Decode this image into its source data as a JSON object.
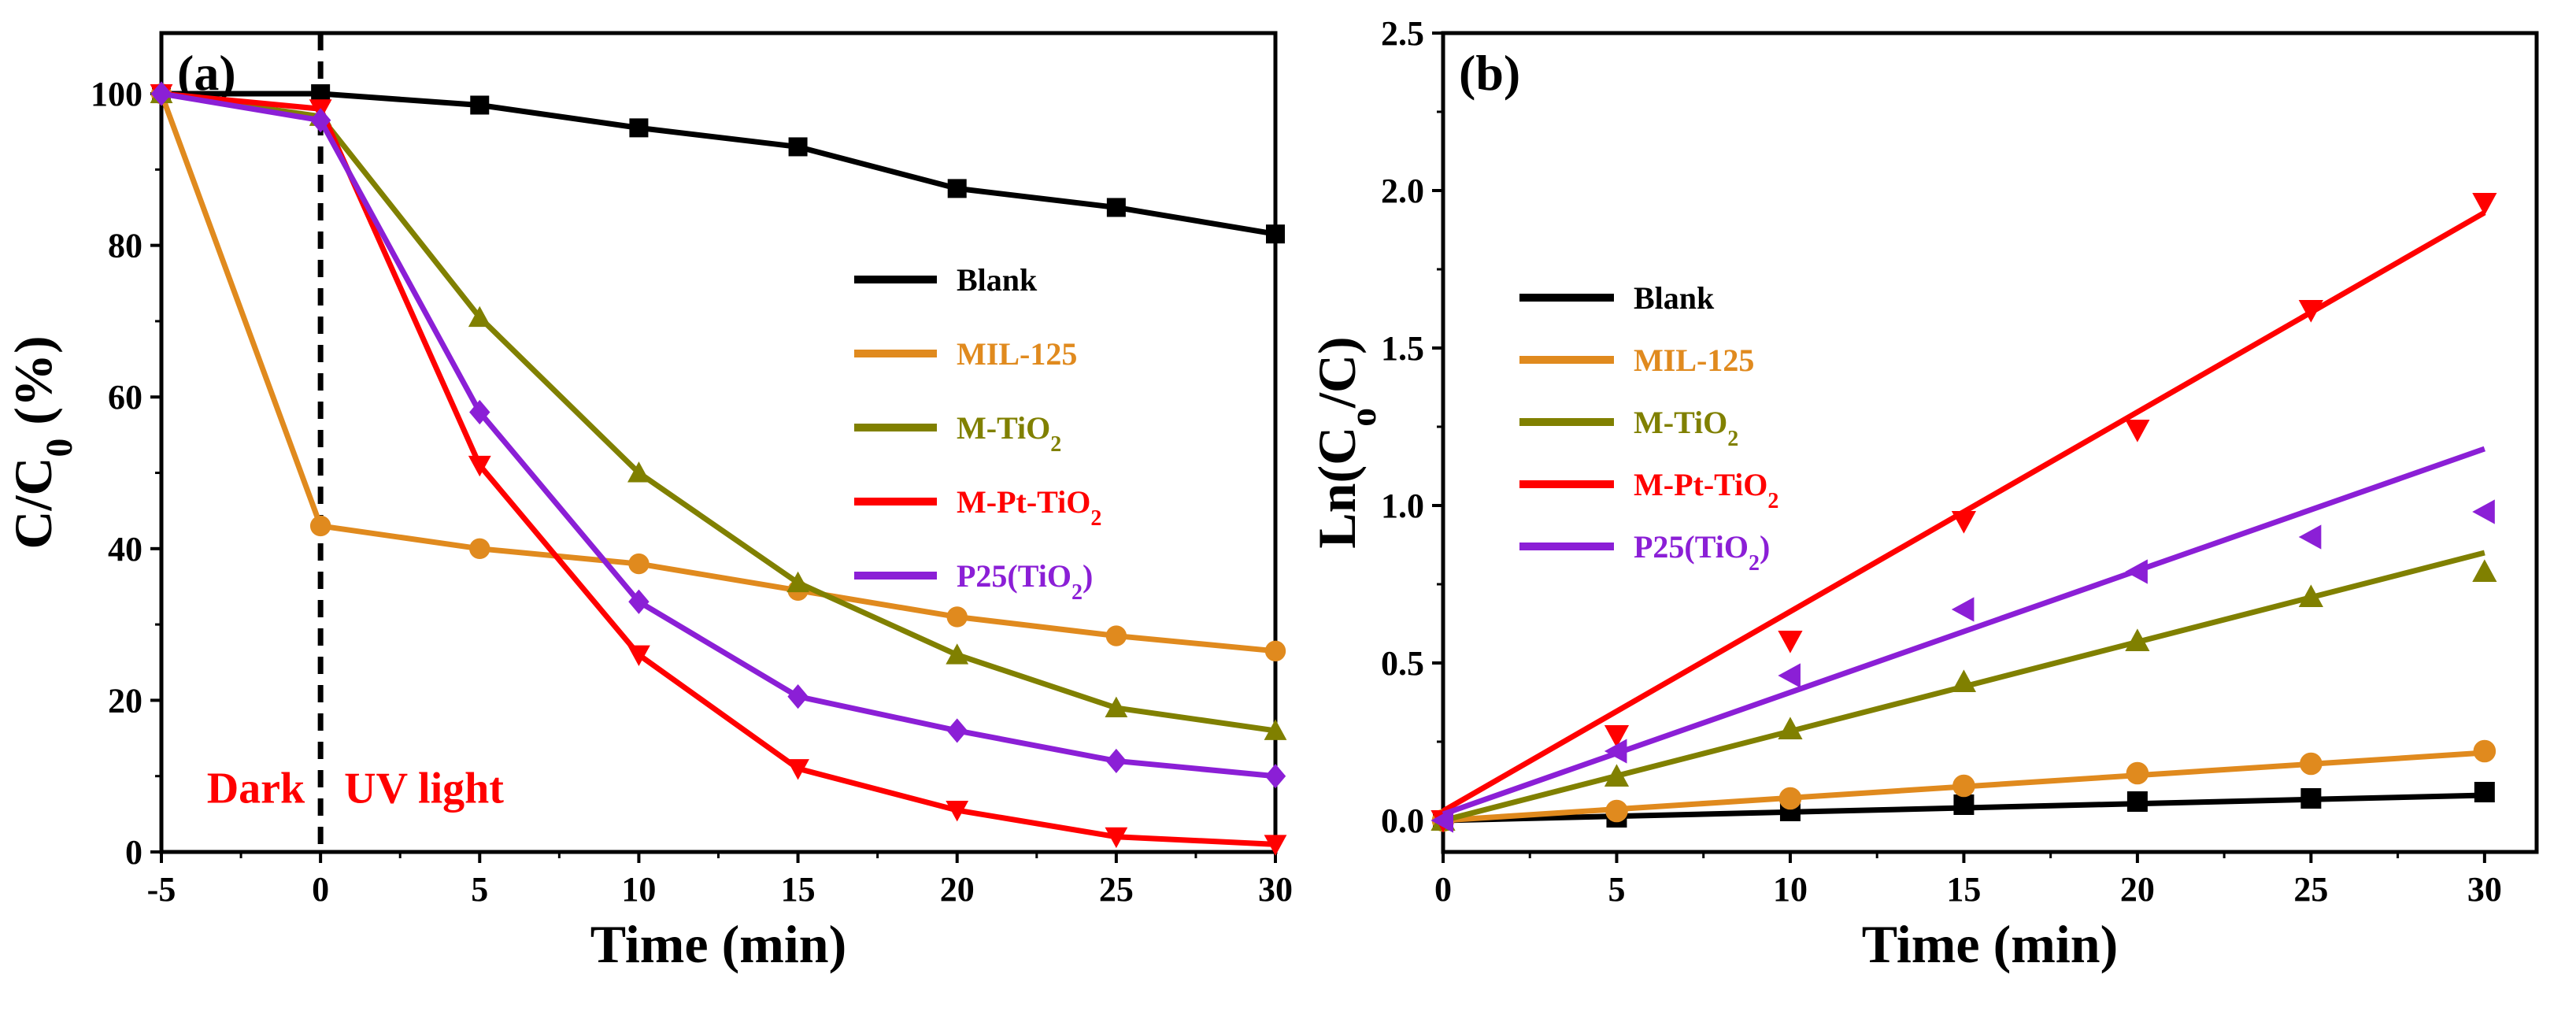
{
  "chart_data": [
    {
      "type": "line",
      "panel": "(a)",
      "xlabel": "Time (min)",
      "ylabel": "C/C0 (%)",
      "xlim": [
        -5,
        30
      ],
      "ylim": [
        0,
        108
      ],
      "x_ticks": [
        -5,
        0,
        5,
        10,
        15,
        20,
        25,
        30
      ],
      "y_ticks": [
        0,
        20,
        40,
        60,
        80,
        100
      ],
      "annotations": [
        "Dark",
        "UV light"
      ],
      "divider_x": 0,
      "x": [
        -5,
        0,
        5,
        10,
        15,
        20,
        25,
        30
      ],
      "series": [
        {
          "name": "Blank",
          "color": "#000000",
          "marker": "square",
          "values": [
            100,
            100,
            98.5,
            95.5,
            93,
            87.5,
            85,
            81.5
          ]
        },
        {
          "name": "MIL-125",
          "color": "#e08a1e",
          "marker": "circle",
          "values": [
            100,
            43,
            40,
            38,
            34.5,
            31,
            28.5,
            26.5
          ]
        },
        {
          "name": "M-TiO2",
          "color": "#808000",
          "marker": "triangle-up",
          "values": [
            100,
            97,
            70.5,
            50,
            35.5,
            26,
            19,
            16
          ]
        },
        {
          "name": "M-Pt-TiO2",
          "color": "#ff0000",
          "marker": "triangle-down",
          "values": [
            100,
            98,
            51,
            26,
            11,
            5.5,
            2,
            1
          ]
        },
        {
          "name": "P25(TiO2)",
          "color": "#8b1fd6",
          "marker": "diamond",
          "values": [
            100,
            96.5,
            58,
            33,
            20.5,
            16,
            12,
            10
          ]
        }
      ]
    },
    {
      "type": "scatter",
      "panel": "(b)",
      "xlabel": "Time (min)",
      "ylabel": "Ln(Co/C)",
      "xlim": [
        0,
        31.5
      ],
      "ylim": [
        -0.1,
        2.5
      ],
      "x_ticks": [
        0,
        5,
        10,
        15,
        20,
        25,
        30
      ],
      "y_ticks": [
        0.0,
        0.5,
        1.0,
        1.5,
        2.0,
        2.5
      ],
      "x": [
        0,
        5,
        10,
        15,
        20,
        25,
        30
      ],
      "series": [
        {
          "name": "Blank",
          "color": "#000000",
          "marker": "square",
          "values": [
            0,
            0.01,
            0.03,
            0.05,
            0.06,
            0.07,
            0.09
          ],
          "fit": [
            0,
            0.08
          ]
        },
        {
          "name": "MIL-125",
          "color": "#e08a1e",
          "marker": "circle",
          "values": [
            0,
            0.03,
            0.07,
            0.11,
            0.15,
            0.18,
            0.22
          ],
          "fit": [
            0,
            0.215
          ]
        },
        {
          "name": "M-TiO2",
          "color": "#808000",
          "marker": "triangle-up",
          "values": [
            0,
            0.14,
            0.29,
            0.44,
            0.57,
            0.71,
            0.79
          ],
          "fit": [
            0,
            0.85
          ]
        },
        {
          "name": "M-Pt-TiO2",
          "color": "#ff0000",
          "marker": "triangle-down",
          "values": [
            0,
            0.27,
            0.57,
            0.95,
            1.24,
            1.62,
            1.96
          ],
          "fit": [
            0.03,
            1.93
          ]
        },
        {
          "name": "P25(TiO2)",
          "color": "#8b1fd6",
          "marker": "triangle-left",
          "values": [
            0,
            0.22,
            0.46,
            0.67,
            0.79,
            0.9,
            0.98
          ],
          "fit": [
            0.02,
            1.18
          ]
        }
      ]
    }
  ]
}
